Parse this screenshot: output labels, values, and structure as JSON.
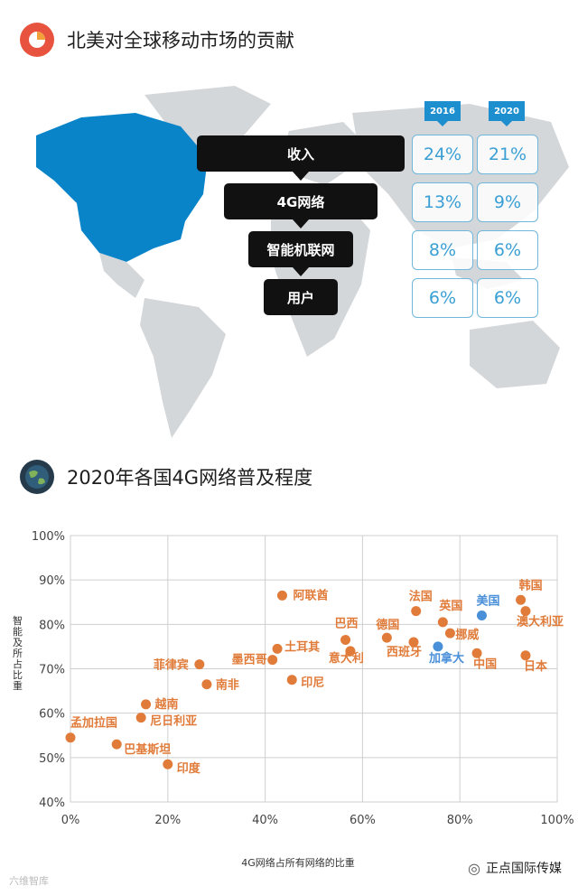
{
  "section1": {
    "title": "北美对全球移动市场的贡献",
    "icon": "pie-chart-icon"
  },
  "funnel": {
    "years": [
      "2016",
      "2020"
    ],
    "rows": [
      {
        "label": "收入",
        "v2016": "24%",
        "v2020": "21%"
      },
      {
        "label": "4G网络",
        "v2016": "13%",
        "v2020": "9%"
      },
      {
        "label": "智能机联网",
        "v2016": "8%",
        "v2020": "6%"
      },
      {
        "label": "用户",
        "v2016": "6%",
        "v2020": "6%"
      }
    ]
  },
  "section2": {
    "title": "2020年各国4G网络普及程度",
    "icon": "globe-icon"
  },
  "colors": {
    "accent": "#1d8fcf",
    "orange": "#e07b39",
    "blue": "#4a90d9",
    "grid": "#cfcfcf",
    "map_land": "#d4d7da",
    "map_highlight": "#0a84c8"
  },
  "chart_data": {
    "type": "scatter",
    "title": "",
    "xlabel": "4G网络占所有网络的比重",
    "ylabel": "智能及所占比重",
    "xlim": [
      0,
      100
    ],
    "ylim": [
      40,
      100
    ],
    "x_ticks": [
      "0%",
      "20%",
      "40%",
      "60%",
      "80%",
      "100%"
    ],
    "y_ticks": [
      "40%",
      "50%",
      "60%",
      "70%",
      "80%",
      "90%",
      "100%"
    ],
    "grid": true,
    "points": [
      {
        "name": "孟加拉国",
        "x": 0,
        "y": 54.5,
        "highlight": false
      },
      {
        "name": "巴基斯坦",
        "x": 9.5,
        "y": 53,
        "highlight": false
      },
      {
        "name": "印度",
        "x": 20,
        "y": 48.5,
        "highlight": false
      },
      {
        "name": "尼日利亚",
        "x": 14.5,
        "y": 59,
        "highlight": false
      },
      {
        "name": "越南",
        "x": 15.5,
        "y": 62,
        "highlight": false
      },
      {
        "name": "菲律宾",
        "x": 26.5,
        "y": 71,
        "highlight": false
      },
      {
        "name": "南非",
        "x": 28,
        "y": 66.5,
        "highlight": false
      },
      {
        "name": "墨西哥",
        "x": 41.5,
        "y": 72,
        "highlight": false
      },
      {
        "name": "土耳其",
        "x": 42.5,
        "y": 74.5,
        "highlight": false
      },
      {
        "name": "阿联酋",
        "x": 43.5,
        "y": 86.5,
        "highlight": false
      },
      {
        "name": "印尼",
        "x": 45.5,
        "y": 67.5,
        "highlight": false
      },
      {
        "name": "巴西",
        "x": 56.5,
        "y": 76.5,
        "highlight": false
      },
      {
        "name": "意大利",
        "x": 57.5,
        "y": 74,
        "highlight": false
      },
      {
        "name": "德国",
        "x": 65,
        "y": 77,
        "highlight": false
      },
      {
        "name": "西班牙",
        "x": 70.5,
        "y": 76,
        "highlight": false
      },
      {
        "name": "法国",
        "x": 71,
        "y": 83,
        "highlight": false
      },
      {
        "name": "英国",
        "x": 76.5,
        "y": 80.5,
        "highlight": false
      },
      {
        "name": "挪威",
        "x": 78,
        "y": 78,
        "highlight": false
      },
      {
        "name": "中国",
        "x": 83.5,
        "y": 73.5,
        "highlight": false
      },
      {
        "name": "加拿大",
        "x": 75.5,
        "y": 75,
        "highlight": true
      },
      {
        "name": "美国",
        "x": 84.5,
        "y": 82,
        "highlight": true
      },
      {
        "name": "韩国",
        "x": 92.5,
        "y": 85.5,
        "highlight": false
      },
      {
        "name": "澳大利亚",
        "x": 93.5,
        "y": 83,
        "highlight": false
      },
      {
        "name": "日本",
        "x": 93.5,
        "y": 73,
        "highlight": false
      }
    ]
  },
  "footer": {
    "watermark": "六维智库",
    "brand": "正点国际传媒"
  }
}
